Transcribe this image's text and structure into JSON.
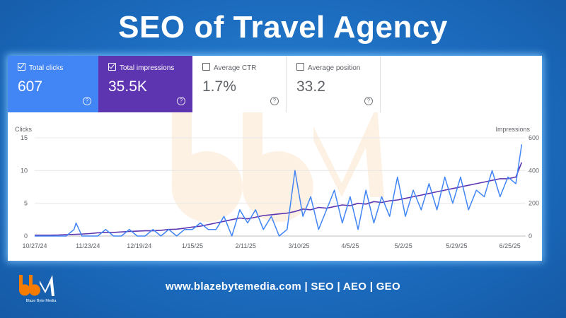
{
  "title": "SEO of Travel Agency",
  "footer": "www.blazebytemedia.com  |  SEO  |  AEO |  GEO",
  "logo": {
    "letters": "bbM",
    "caption": "Blaze  Byte  Media"
  },
  "watermark": {
    "text": "Blaze Byte Media"
  },
  "colors": {
    "clicks": "#4285f4",
    "impressions": "#5e35b1",
    "background": "#1e6fc0"
  },
  "metrics": [
    {
      "label": "Total clicks",
      "value": "607",
      "checked": true
    },
    {
      "label": "Total impressions",
      "value": "35.5K",
      "checked": true
    },
    {
      "label": "Average CTR",
      "value": "1.7%",
      "checked": false
    },
    {
      "label": "Average position",
      "value": "33.2",
      "checked": false
    }
  ],
  "chart_data": {
    "type": "line",
    "ylabel_left": "Clicks",
    "ylabel_right": "Impressions",
    "y_left_ticks": [
      0,
      5,
      10,
      15
    ],
    "y_right_ticks": [
      0,
      200,
      400,
      600
    ],
    "ylim_left": [
      0,
      15
    ],
    "ylim_right": [
      0,
      600
    ],
    "x_ticks": [
      "10/27/24",
      "11/23/24",
      "12/19/24",
      "1/15/25",
      "2/11/25",
      "3/10/25",
      "4/5/25",
      "5/2/25",
      "5/29/25",
      "6/25/25"
    ],
    "grid": true,
    "series": [
      {
        "name": "Clicks",
        "axis": "left",
        "x": [
          "10/27/24",
          "10/31/24",
          "11/4/24",
          "11/8/24",
          "11/12/24",
          "11/16/24",
          "11/17/24",
          "11/20/24",
          "11/24/24",
          "11/28/24",
          "12/2/24",
          "12/6/24",
          "12/10/24",
          "12/14/24",
          "12/18/24",
          "12/22/24",
          "12/26/24",
          "12/30/24",
          "1/3/25",
          "1/7/25",
          "1/11/25",
          "1/15/25",
          "1/19/25",
          "1/23/25",
          "1/27/25",
          "1/31/25",
          "2/4/25",
          "2/8/25",
          "2/12/25",
          "2/16/25",
          "2/20/25",
          "2/24/25",
          "2/28/25",
          "3/4/25",
          "3/8/25",
          "3/12/25",
          "3/16/25",
          "3/20/25",
          "3/24/25",
          "3/28/25",
          "4/1/25",
          "4/5/25",
          "4/9/25",
          "4/13/25",
          "4/17/25",
          "4/21/25",
          "4/25/25",
          "4/29/25",
          "5/3/25",
          "5/7/25",
          "5/11/25",
          "5/15/25",
          "5/19/25",
          "5/23/25",
          "5/27/25",
          "5/31/25",
          "6/4/25",
          "6/8/25",
          "6/12/25",
          "6/16/25",
          "6/20/25",
          "6/24/25",
          "6/28/25",
          "7/1/25"
        ],
        "values": [
          0,
          0,
          0,
          0,
          0,
          1,
          2,
          0,
          0,
          0,
          1,
          0,
          0,
          1,
          0,
          0,
          1,
          0,
          1,
          0,
          1,
          1,
          2,
          1,
          1,
          3,
          0,
          4,
          2,
          4,
          1,
          3,
          0,
          1,
          10,
          3,
          6,
          1,
          4,
          7,
          2,
          6,
          1,
          7,
          2,
          6,
          3,
          9,
          3,
          7,
          4,
          8,
          4,
          9,
          5,
          9,
          4,
          7,
          6,
          10,
          6,
          9,
          8,
          14
        ]
      },
      {
        "name": "Impressions",
        "axis": "right",
        "x": [
          "10/27/24",
          "10/31/24",
          "11/4/24",
          "11/8/24",
          "11/12/24",
          "11/16/24",
          "11/20/24",
          "11/24/24",
          "11/28/24",
          "12/2/24",
          "12/6/24",
          "12/10/24",
          "12/14/24",
          "12/18/24",
          "12/22/24",
          "12/26/24",
          "12/30/24",
          "1/3/25",
          "1/7/25",
          "1/11/25",
          "1/15/25",
          "1/19/25",
          "1/23/25",
          "1/27/25",
          "1/31/25",
          "2/4/25",
          "2/8/25",
          "2/12/25",
          "2/16/25",
          "2/20/25",
          "2/24/25",
          "2/28/25",
          "3/4/25",
          "3/8/25",
          "3/12/25",
          "3/16/25",
          "3/20/25",
          "3/24/25",
          "3/28/25",
          "4/1/25",
          "4/5/25",
          "4/9/25",
          "4/13/25",
          "4/17/25",
          "4/21/25",
          "4/25/25",
          "4/29/25",
          "5/3/25",
          "5/7/25",
          "5/11/25",
          "5/15/25",
          "5/19/25",
          "5/23/25",
          "5/27/25",
          "5/31/25",
          "6/4/25",
          "6/8/25",
          "6/12/25",
          "6/16/25",
          "6/20/25",
          "6/24/25",
          "6/28/25",
          "7/1/25"
        ],
        "values": [
          5,
          5,
          5,
          6,
          8,
          10,
          12,
          15,
          20,
          22,
          22,
          25,
          28,
          30,
          32,
          32,
          35,
          40,
          42,
          48,
          55,
          60,
          70,
          80,
          90,
          100,
          110,
          105,
          115,
          125,
          130,
          135,
          140,
          150,
          165,
          160,
          175,
          170,
          180,
          190,
          185,
          200,
          195,
          210,
          205,
          215,
          220,
          230,
          240,
          250,
          260,
          270,
          280,
          290,
          300,
          310,
          320,
          330,
          340,
          350,
          350,
          360,
          450
        ]
      }
    ]
  }
}
